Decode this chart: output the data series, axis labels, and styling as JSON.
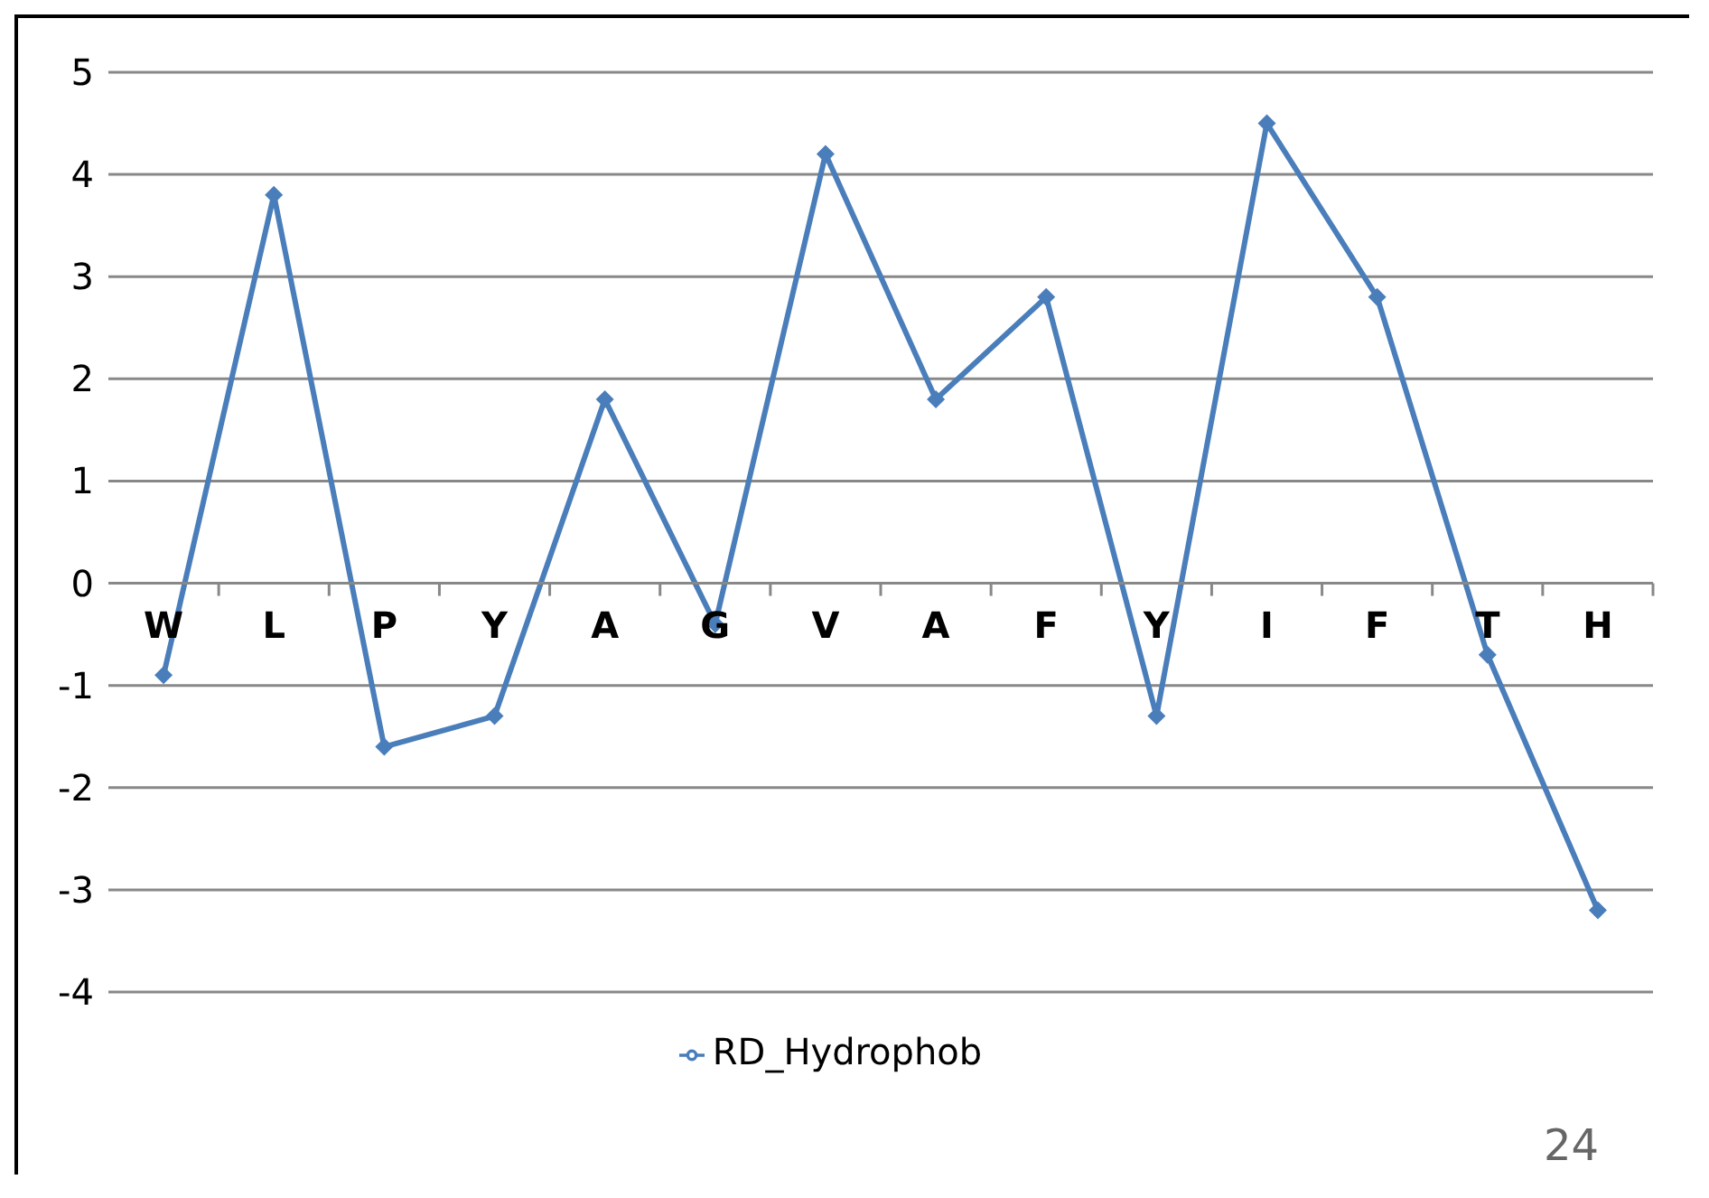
{
  "chart_data": {
    "type": "line",
    "categories": [
      "W",
      "L",
      "P",
      "Y",
      "A",
      "G",
      "V",
      "A",
      "F",
      "Y",
      "I",
      "F",
      "T",
      "H"
    ],
    "series": [
      {
        "name": "RD_Hydrophob",
        "color": "#4a7ebb",
        "values": [
          -0.9,
          3.8,
          -1.6,
          -1.3,
          1.8,
          -0.4,
          4.2,
          1.8,
          2.8,
          -1.3,
          4.5,
          2.8,
          -0.7,
          -3.2
        ]
      }
    ],
    "ylim": [
      -4,
      5
    ],
    "yticks": [
      -4,
      -3,
      -2,
      -1,
      0,
      1,
      2,
      3,
      4,
      5
    ],
    "grid": "y",
    "legend": "bottom",
    "marker": "diamond",
    "line_style": "solid",
    "annotations": [
      "24"
    ]
  }
}
